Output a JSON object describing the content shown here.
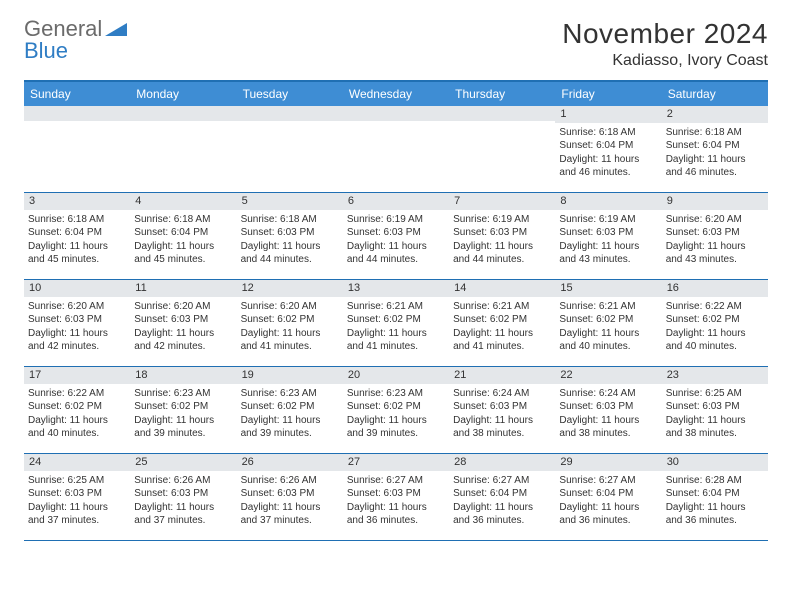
{
  "logo": {
    "line1": "General",
    "line2": "Blue"
  },
  "title": "November 2024",
  "location": "Kadiasso, Ivory Coast",
  "colors": {
    "header_bg": "#3e8dd4",
    "header_text": "#ffffff",
    "rule": "#1f6fb3",
    "daynum_bg": "#e4e7ea",
    "text": "#333333",
    "logo_gray": "#6b6b6b",
    "logo_blue": "#2f7dc4"
  },
  "weekdays": [
    "Sunday",
    "Monday",
    "Tuesday",
    "Wednesday",
    "Thursday",
    "Friday",
    "Saturday"
  ],
  "weeks": [
    [
      null,
      null,
      null,
      null,
      null,
      {
        "n": "1",
        "sr": "6:18 AM",
        "ss": "6:04 PM",
        "dl": "11 hours and 46 minutes."
      },
      {
        "n": "2",
        "sr": "6:18 AM",
        "ss": "6:04 PM",
        "dl": "11 hours and 46 minutes."
      }
    ],
    [
      {
        "n": "3",
        "sr": "6:18 AM",
        "ss": "6:04 PM",
        "dl": "11 hours and 45 minutes."
      },
      {
        "n": "4",
        "sr": "6:18 AM",
        "ss": "6:04 PM",
        "dl": "11 hours and 45 minutes."
      },
      {
        "n": "5",
        "sr": "6:18 AM",
        "ss": "6:03 PM",
        "dl": "11 hours and 44 minutes."
      },
      {
        "n": "6",
        "sr": "6:19 AM",
        "ss": "6:03 PM",
        "dl": "11 hours and 44 minutes."
      },
      {
        "n": "7",
        "sr": "6:19 AM",
        "ss": "6:03 PM",
        "dl": "11 hours and 44 minutes."
      },
      {
        "n": "8",
        "sr": "6:19 AM",
        "ss": "6:03 PM",
        "dl": "11 hours and 43 minutes."
      },
      {
        "n": "9",
        "sr": "6:20 AM",
        "ss": "6:03 PM",
        "dl": "11 hours and 43 minutes."
      }
    ],
    [
      {
        "n": "10",
        "sr": "6:20 AM",
        "ss": "6:03 PM",
        "dl": "11 hours and 42 minutes."
      },
      {
        "n": "11",
        "sr": "6:20 AM",
        "ss": "6:03 PM",
        "dl": "11 hours and 42 minutes."
      },
      {
        "n": "12",
        "sr": "6:20 AM",
        "ss": "6:02 PM",
        "dl": "11 hours and 41 minutes."
      },
      {
        "n": "13",
        "sr": "6:21 AM",
        "ss": "6:02 PM",
        "dl": "11 hours and 41 minutes."
      },
      {
        "n": "14",
        "sr": "6:21 AM",
        "ss": "6:02 PM",
        "dl": "11 hours and 41 minutes."
      },
      {
        "n": "15",
        "sr": "6:21 AM",
        "ss": "6:02 PM",
        "dl": "11 hours and 40 minutes."
      },
      {
        "n": "16",
        "sr": "6:22 AM",
        "ss": "6:02 PM",
        "dl": "11 hours and 40 minutes."
      }
    ],
    [
      {
        "n": "17",
        "sr": "6:22 AM",
        "ss": "6:02 PM",
        "dl": "11 hours and 40 minutes."
      },
      {
        "n": "18",
        "sr": "6:23 AM",
        "ss": "6:02 PM",
        "dl": "11 hours and 39 minutes."
      },
      {
        "n": "19",
        "sr": "6:23 AM",
        "ss": "6:02 PM",
        "dl": "11 hours and 39 minutes."
      },
      {
        "n": "20",
        "sr": "6:23 AM",
        "ss": "6:02 PM",
        "dl": "11 hours and 39 minutes."
      },
      {
        "n": "21",
        "sr": "6:24 AM",
        "ss": "6:03 PM",
        "dl": "11 hours and 38 minutes."
      },
      {
        "n": "22",
        "sr": "6:24 AM",
        "ss": "6:03 PM",
        "dl": "11 hours and 38 minutes."
      },
      {
        "n": "23",
        "sr": "6:25 AM",
        "ss": "6:03 PM",
        "dl": "11 hours and 38 minutes."
      }
    ],
    [
      {
        "n": "24",
        "sr": "6:25 AM",
        "ss": "6:03 PM",
        "dl": "11 hours and 37 minutes."
      },
      {
        "n": "25",
        "sr": "6:26 AM",
        "ss": "6:03 PM",
        "dl": "11 hours and 37 minutes."
      },
      {
        "n": "26",
        "sr": "6:26 AM",
        "ss": "6:03 PM",
        "dl": "11 hours and 37 minutes."
      },
      {
        "n": "27",
        "sr": "6:27 AM",
        "ss": "6:03 PM",
        "dl": "11 hours and 36 minutes."
      },
      {
        "n": "28",
        "sr": "6:27 AM",
        "ss": "6:04 PM",
        "dl": "11 hours and 36 minutes."
      },
      {
        "n": "29",
        "sr": "6:27 AM",
        "ss": "6:04 PM",
        "dl": "11 hours and 36 minutes."
      },
      {
        "n": "30",
        "sr": "6:28 AM",
        "ss": "6:04 PM",
        "dl": "11 hours and 36 minutes."
      }
    ]
  ],
  "labels": {
    "sunrise": "Sunrise: ",
    "sunset": "Sunset: ",
    "daylight": "Daylight: "
  }
}
